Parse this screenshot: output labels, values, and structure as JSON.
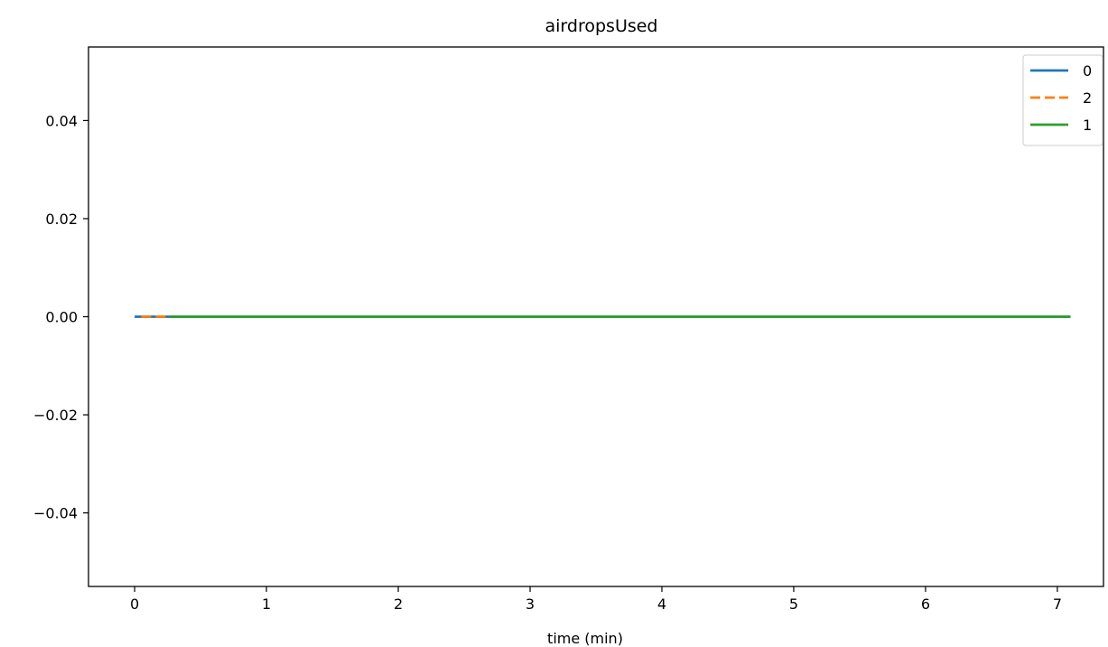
{
  "chart_data": {
    "type": "line",
    "title": "airdropsUsed",
    "xlabel": "time (min)",
    "ylabel": "",
    "xlim": [
      -0.35,
      7.35
    ],
    "ylim": [
      -0.055,
      0.055
    ],
    "xticks": [
      0,
      1,
      2,
      3,
      4,
      5,
      6,
      7
    ],
    "xtick_labels": [
      "0",
      "1",
      "2",
      "3",
      "4",
      "5",
      "6",
      "7"
    ],
    "yticks": [
      -0.04,
      -0.02,
      0.0,
      0.02,
      0.04
    ],
    "ytick_labels": [
      "−0.04",
      "−0.02",
      "0.00",
      "0.02",
      "0.04"
    ],
    "grid": false,
    "legend_position": "top-right",
    "series": [
      {
        "name": "0",
        "color": "#1f77b4",
        "dash": "solid",
        "x": [
          0.0,
          7.1
        ],
        "y": [
          0.0,
          0.0
        ]
      },
      {
        "name": "2",
        "color": "#ff7f0e",
        "dash": "dashed",
        "x": [
          0.05,
          0.27
        ],
        "y": [
          0.0,
          0.0
        ]
      },
      {
        "name": "1",
        "color": "#2ca02c",
        "dash": "solid",
        "x": [
          0.27,
          7.1
        ],
        "y": [
          0.0,
          0.0
        ]
      }
    ]
  }
}
